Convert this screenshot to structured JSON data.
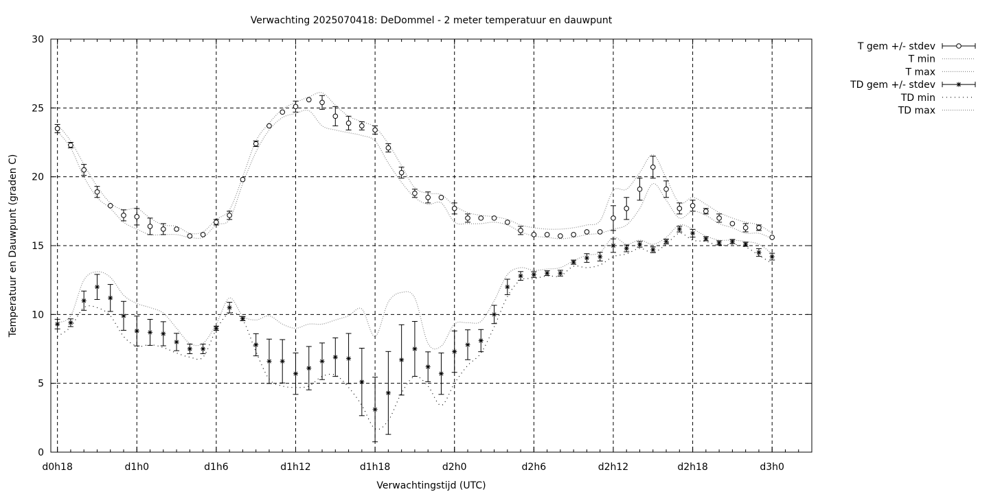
{
  "chart_data": {
    "type": "line",
    "title": "Verwachting 2025070418: DeDommel - 2 meter temperatuur en dauwpunt",
    "xlabel": "Verwachtingstijd (UTC)",
    "ylabel": "Temperatuur en Dauwpunt (graden C)",
    "xlim": [
      17.5,
      75
    ],
    "ylim": [
      0,
      30
    ],
    "grid": true,
    "legend_position": "outside-top-right",
    "x_ticks": [
      {
        "x": 18,
        "label": "d0h18"
      },
      {
        "x": 24,
        "label": "d1h0"
      },
      {
        "x": 30,
        "label": "d1h6"
      },
      {
        "x": 36,
        "label": "d1h12"
      },
      {
        "x": 42,
        "label": "d1h18"
      },
      {
        "x": 48,
        "label": "d2h0"
      },
      {
        "x": 54,
        "label": "d2h6"
      },
      {
        "x": 60,
        "label": "d2h12"
      },
      {
        "x": 66,
        "label": "d2h18"
      },
      {
        "x": 72,
        "label": "d3h0"
      }
    ],
    "y_ticks": [
      0,
      5,
      10,
      15,
      20,
      25,
      30
    ],
    "x": [
      18,
      19,
      20,
      21,
      22,
      23,
      24,
      25,
      26,
      27,
      28,
      29,
      30,
      31,
      32,
      33,
      34,
      35,
      36,
      37,
      38,
      39,
      40,
      41,
      42,
      43,
      44,
      45,
      46,
      47,
      48,
      49,
      50,
      51,
      52,
      53,
      54,
      55,
      56,
      57,
      58,
      59,
      60,
      61,
      62,
      63,
      64,
      65,
      66,
      67,
      68,
      69,
      70,
      71,
      72
    ],
    "series": [
      {
        "name": "T gem +/- stdev",
        "style": "errorbars",
        "marker": "circle",
        "values": [
          23.5,
          22.3,
          20.5,
          18.9,
          17.9,
          17.2,
          17.1,
          16.4,
          16.2,
          16.2,
          15.7,
          15.8,
          16.7,
          17.2,
          19.8,
          22.4,
          23.7,
          24.7,
          25.1,
          25.6,
          25.4,
          24.4,
          23.9,
          23.7,
          23.4,
          22.1,
          20.3,
          18.8,
          18.5,
          18.5,
          17.7,
          17.0,
          17.0,
          17.0,
          16.7,
          16.1,
          15.8,
          15.8,
          15.7,
          15.8,
          16.0,
          16.0,
          17.0,
          17.7,
          19.1,
          20.7,
          19.1,
          17.7,
          17.9,
          17.5,
          17.0,
          16.6,
          16.3,
          16.3,
          15.6
        ],
        "stdev": [
          0.3,
          0.2,
          0.4,
          0.4,
          0.1,
          0.4,
          0.6,
          0.6,
          0.4,
          0.1,
          0.1,
          0.1,
          0.2,
          0.3,
          0.1,
          0.2,
          0.1,
          0.1,
          0.4,
          0.1,
          0.5,
          0.7,
          0.5,
          0.3,
          0.3,
          0.3,
          0.4,
          0.3,
          0.4,
          0.1,
          0.4,
          0.3,
          0.1,
          0.1,
          0.1,
          0.3,
          0.1,
          0.1,
          0.1,
          0.1,
          0.1,
          0.1,
          0.9,
          0.8,
          0.8,
          0.8,
          0.6,
          0.4,
          0.4,
          0.2,
          0.3,
          0.1,
          0.3,
          0.2,
          0.1
        ]
      },
      {
        "name": "T min",
        "style": "dotted",
        "values": [
          23.3,
          22.1,
          20.0,
          18.5,
          17.7,
          16.7,
          16.2,
          15.8,
          15.8,
          15.8,
          15.6,
          15.6,
          16.5,
          16.9,
          19.5,
          21.8,
          23.4,
          24.3,
          24.6,
          24.8,
          23.7,
          23.4,
          23.2,
          23.0,
          22.6,
          21.0,
          19.6,
          18.5,
          18.0,
          18.1,
          16.7,
          16.6,
          16.6,
          16.7,
          16.5,
          16.0,
          15.7,
          15.6,
          15.5,
          15.6,
          15.8,
          15.9,
          16.2,
          16.5,
          17.7,
          19.5,
          18.3,
          17.0,
          17.5,
          17.2,
          16.6,
          16.3,
          15.9,
          15.9,
          15.5
        ]
      },
      {
        "name": "T max",
        "style": "dotted",
        "values": [
          23.8,
          22.6,
          20.9,
          19.3,
          18.1,
          17.6,
          17.7,
          17.0,
          16.5,
          16.4,
          15.9,
          16.0,
          16.9,
          17.6,
          20.0,
          22.6,
          23.9,
          24.9,
          25.4,
          25.8,
          26.1,
          25.2,
          24.4,
          24.0,
          23.6,
          22.4,
          20.8,
          19.2,
          18.8,
          18.7,
          17.9,
          17.4,
          17.2,
          17.1,
          16.9,
          16.5,
          16.3,
          16.2,
          16.2,
          16.3,
          16.5,
          16.8,
          19.0,
          19.1,
          20.3,
          21.6,
          19.9,
          18.1,
          18.5,
          18.0,
          17.4,
          17.0,
          16.7,
          16.5,
          15.9
        ]
      },
      {
        "name": "TD gem +/- stdev",
        "style": "errorbars",
        "marker": "asterisk",
        "values": [
          9.3,
          9.4,
          11.0,
          12.0,
          11.2,
          9.9,
          8.8,
          8.7,
          8.6,
          8.0,
          7.5,
          7.5,
          9.0,
          10.5,
          9.7,
          7.8,
          6.6,
          6.6,
          5.7,
          6.1,
          6.6,
          6.9,
          6.8,
          5.1,
          3.1,
          4.3,
          6.7,
          7.5,
          6.2,
          5.7,
          7.3,
          7.8,
          8.1,
          10.0,
          12.0,
          12.8,
          12.9,
          13.0,
          13.0,
          13.8,
          14.1,
          14.2,
          15.0,
          14.8,
          15.1,
          14.7,
          15.3,
          16.2,
          15.9,
          15.5,
          15.2,
          15.3,
          15.1,
          14.5,
          14.2
        ]
      },
      {
        "name": "TD min",
        "style": "dotted",
        "values": [
          8.4,
          9.1,
          10.5,
          10.5,
          9.9,
          8.4,
          7.7,
          7.8,
          7.6,
          7.2,
          6.9,
          6.9,
          8.9,
          10.1,
          9.6,
          7.3,
          5.3,
          4.8,
          4.7,
          4.8,
          5.5,
          5.6,
          4.7,
          3.4,
          1.7,
          2.3,
          4.3,
          5.5,
          4.8,
          3.4,
          5.0,
          6.3,
          7.2,
          9.1,
          11.3,
          12.5,
          12.6,
          12.8,
          12.8,
          13.5,
          13.4,
          13.6,
          14.2,
          14.4,
          14.8,
          14.5,
          15.1,
          15.9,
          15.4,
          15.3,
          15.0,
          15.1,
          14.9,
          14.3,
          13.7
        ]
      },
      {
        "name": "TD max",
        "style": "dotted",
        "values": [
          9.4,
          9.9,
          12.5,
          13.1,
          12.7,
          11.4,
          10.8,
          10.5,
          10.1,
          9.0,
          7.9,
          7.9,
          9.3,
          11.2,
          9.9,
          9.6,
          9.9,
          9.3,
          9.0,
          9.3,
          9.3,
          9.6,
          9.9,
          10.4,
          8.4,
          10.9,
          11.6,
          11.2,
          7.9,
          7.7,
          9.3,
          9.4,
          9.5,
          11.0,
          12.9,
          13.4,
          13.2,
          13.3,
          13.4,
          13.9,
          14.3,
          14.5,
          15.6,
          15.1,
          15.4,
          15.1,
          15.6,
          16.5,
          16.2,
          15.7,
          15.4,
          15.4,
          15.3,
          15.1,
          14.4
        ]
      }
    ]
  }
}
